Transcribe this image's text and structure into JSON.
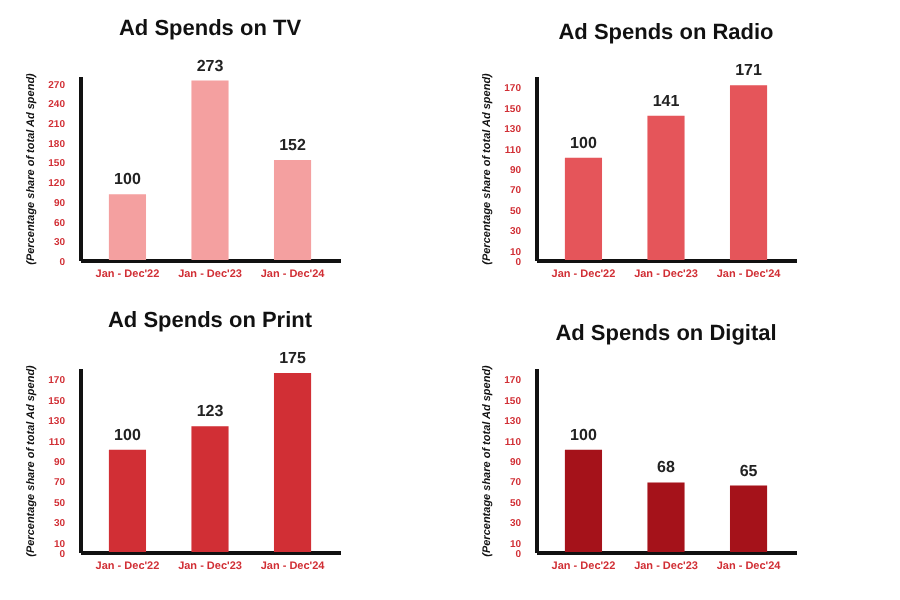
{
  "chart_data": [
    {
      "type": "bar",
      "title": "Ad Spends on TV",
      "ylabel": "(Percentage share of total Ad spend)",
      "categories": [
        "Jan - Dec'22",
        "Jan - Dec'23",
        "Jan - Dec'24"
      ],
      "values": [
        100,
        273,
        152
      ],
      "color": "#f4a0a0",
      "ylim": [
        0,
        280
      ],
      "yticks": [
        0,
        30,
        60,
        90,
        120,
        150,
        180,
        210,
        240,
        270
      ],
      "data_labels": true,
      "grid": false
    },
    {
      "type": "bar",
      "title": "Ad Spends on Radio",
      "ylabel": "(Percentage share of total Ad spend)",
      "categories": [
        "Jan - Dec'22",
        "Jan - Dec'23",
        "Jan - Dec'24"
      ],
      "values": [
        100,
        141,
        171
      ],
      "color": "#e5555a",
      "ylim": [
        0,
        180
      ],
      "yticks": [
        0,
        10,
        30,
        50,
        70,
        90,
        110,
        130,
        150,
        170
      ],
      "data_labels": true,
      "grid": false
    },
    {
      "type": "bar",
      "title": "Ad Spends on Print",
      "ylabel": "(Percentage share of total Ad spend)",
      "categories": [
        "Jan - Dec'22",
        "Jan - Dec'23",
        "Jan - Dec'24"
      ],
      "values": [
        100,
        123,
        175
      ],
      "color": "#d12f35",
      "ylim": [
        0,
        180
      ],
      "yticks": [
        0,
        10,
        30,
        50,
        70,
        90,
        110,
        130,
        150,
        170
      ],
      "data_labels": true,
      "grid": false
    },
    {
      "type": "bar",
      "title": "Ad Spends on Digital",
      "ylabel": "(Percentage share of total Ad spend)",
      "categories": [
        "Jan - Dec'22",
        "Jan - Dec'23",
        "Jan - Dec'24"
      ],
      "values": [
        100,
        68,
        65
      ],
      "color": "#a5121a",
      "ylim": [
        0,
        180
      ],
      "yticks": [
        0,
        10,
        30,
        50,
        70,
        90,
        110,
        130,
        150,
        170
      ],
      "data_labels": true,
      "grid": false
    }
  ]
}
